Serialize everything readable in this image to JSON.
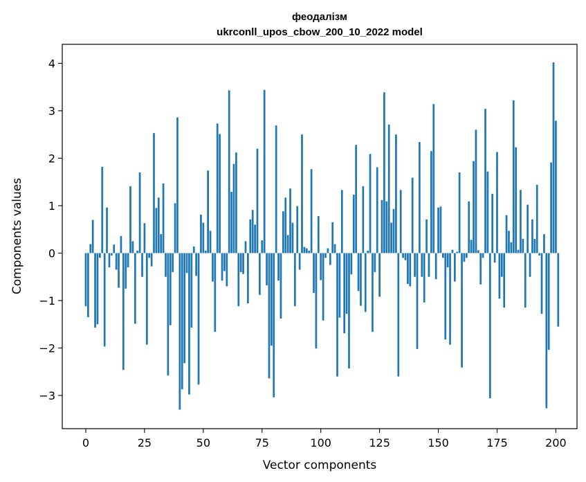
{
  "chart_data": {
    "type": "bar",
    "title": "феодалізм",
    "subtitle": "ukrconll_upos_cbow_200_10_2022 model",
    "xlabel": "Vector components",
    "ylabel": "Components values",
    "xlim": [
      -10,
      209
    ],
    "ylim": [
      -3.7,
      4.4
    ],
    "xticks": [
      0,
      25,
      50,
      75,
      100,
      125,
      150,
      175,
      200
    ],
    "xtick_labels": [
      "0",
      "25",
      "50",
      "75",
      "100",
      "125",
      "150",
      "175",
      "200"
    ],
    "yticks": [
      -3,
      -2,
      -1,
      0,
      1,
      2,
      3,
      4
    ],
    "ytick_labels": [
      "−3",
      "−2",
      "−1",
      "0",
      "1",
      "2",
      "3",
      "4"
    ],
    "bar_color": "#1f77b4",
    "grid": false,
    "values": [
      -1.12,
      -1.35,
      0.19,
      0.7,
      -1.57,
      -1.5,
      -0.1,
      1.82,
      -1.97,
      0.96,
      -0.3,
      -0.05,
      0.18,
      -0.35,
      -0.73,
      0.36,
      -2.46,
      -0.75,
      -0.3,
      1.41,
      0.25,
      -1.49,
      0.05,
      1.7,
      -0.5,
      0.63,
      -1.93,
      -0.1,
      -0.28,
      2.53,
      0.95,
      1.17,
      0.4,
      1.47,
      -0.5,
      -2.58,
      -1.52,
      -0.4,
      1.05,
      2.86,
      -3.3,
      -2.87,
      -2.32,
      -0.42,
      -2.98,
      -1.57,
      0.14,
      -0.48,
      -2.77,
      0.81,
      0.64,
      0.05,
      1.74,
      0.47,
      -0.6,
      -1.66,
      2.73,
      2.51,
      -0.58,
      -0.38,
      -0.7,
      3.43,
      1.29,
      1.88,
      2.12,
      -1.12,
      -0.4,
      -0.44,
      0.25,
      -1.06,
      0.71,
      0.91,
      0.6,
      2.2,
      -0.88,
      0.27,
      3.44,
      -0.68,
      -2.64,
      -1.95,
      -3.04,
      2.69,
      -0.58,
      -1.38,
      0.88,
      1.17,
      0.38,
      1.36,
      0.64,
      -1.12,
      0.99,
      -0.35,
      2.5,
      0.13,
      0.1,
      0.05,
      1.77,
      -0.84,
      -2.01,
      0.78,
      -0.57,
      -1.42,
      -0.1,
      0.1,
      -0.25,
      0.65,
      0.19,
      -2.6,
      -1.36,
      1.33,
      -1.69,
      -1.28,
      -2.43,
      -0.45,
      1.23,
      2.28,
      -0.8,
      -1.11,
      1.41,
      -1.24,
      0.05,
      2.09,
      -1.66,
      -0.4,
      1.81,
      -0.92,
      1.12,
      3.39,
      1.09,
      2.71,
      0.64,
      0.93,
      2.5,
      -2.6,
      1.33,
      -0.1,
      -0.15,
      -0.65,
      -0.7,
      1.59,
      -0.5,
      -2.02,
      2.34,
      -0.5,
      -1.04,
      0.71,
      -0.5,
      2.15,
      3.14,
      -0.55,
      0.96,
      0.98,
      -0.1,
      -1.82,
      -0.3,
      -1.93,
      0.07,
      -0.6,
      0.03,
      1.7,
      -2.41,
      -0.18,
      -0.1,
      1.09,
      0.28,
      1.94,
      2.6,
      0.06,
      -0.66,
      -0.1,
      3.04,
      1.72,
      -3.06,
      1.25,
      -0.2,
      2.13,
      -0.96,
      -0.5,
      -1.15,
      0.8,
      0.47,
      0.23,
      3.22,
      2.23,
      0.07,
      1.33,
      0.3,
      -1.15,
      1.02,
      -0.5,
      0.71,
      0.3,
      1.44,
      -0.05,
      -1.28,
      0.4,
      -3.27,
      -2.04,
      1.91,
      4.02,
      2.79,
      -1.55
    ]
  }
}
